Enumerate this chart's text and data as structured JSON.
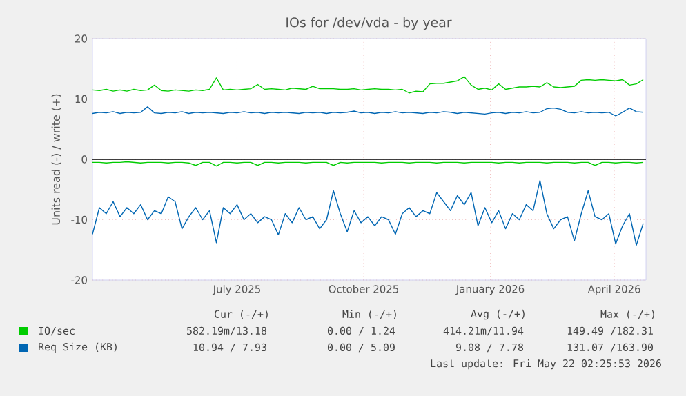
{
  "chart_data": {
    "type": "line",
    "title": "IOs for /dev/vda - by year",
    "ylabel": "Units read (-) / write (+)",
    "x": [
      "2025-03-18",
      "2025-03-23",
      "2025-03-28",
      "2025-04-02",
      "2025-04-07",
      "2025-04-12",
      "2025-04-17",
      "2025-04-22",
      "2025-04-27",
      "2025-05-02",
      "2025-05-07",
      "2025-05-12",
      "2025-05-17",
      "2025-05-22",
      "2025-05-27",
      "2025-06-01",
      "2025-06-06",
      "2025-06-11",
      "2025-06-16",
      "2025-06-21",
      "2025-06-26",
      "2025-07-01",
      "2025-07-06",
      "2025-07-11",
      "2025-07-16",
      "2025-07-21",
      "2025-07-26",
      "2025-07-31",
      "2025-08-05",
      "2025-08-10",
      "2025-08-15",
      "2025-08-20",
      "2025-08-25",
      "2025-08-30",
      "2025-09-04",
      "2025-09-09",
      "2025-09-14",
      "2025-09-19",
      "2025-09-24",
      "2025-09-29",
      "2025-10-04",
      "2025-10-09",
      "2025-10-14",
      "2025-10-19",
      "2025-10-24",
      "2025-10-29",
      "2025-11-03",
      "2025-11-08",
      "2025-11-13",
      "2025-11-18",
      "2025-11-23",
      "2025-11-28",
      "2025-12-03",
      "2025-12-08",
      "2025-12-13",
      "2025-12-18",
      "2025-12-23",
      "2025-12-28",
      "2026-01-02",
      "2026-01-07",
      "2026-01-12",
      "2026-01-17",
      "2026-01-22",
      "2026-01-27",
      "2026-02-01",
      "2026-02-06",
      "2026-02-11",
      "2026-02-16",
      "2026-02-21",
      "2026-02-26",
      "2026-03-03",
      "2026-03-08",
      "2026-03-13",
      "2026-03-18",
      "2026-03-23",
      "2026-03-28",
      "2026-04-02",
      "2026-04-07",
      "2026-04-12",
      "2026-04-17",
      "2026-04-22"
    ],
    "series": [
      {
        "name": "IO/sec",
        "color": "#00cc00",
        "values": [
          11.5,
          11.4,
          11.6,
          11.3,
          11.5,
          11.3,
          11.6,
          11.4,
          11.5,
          12.3,
          11.4,
          11.3,
          11.5,
          11.4,
          11.3,
          11.5,
          11.4,
          11.6,
          13.5,
          11.5,
          11.6,
          11.5,
          11.6,
          11.7,
          12.4,
          11.6,
          11.7,
          11.6,
          11.5,
          11.8,
          11.7,
          11.6,
          12.1,
          11.7,
          11.7,
          11.7,
          11.6,
          11.6,
          11.7,
          11.5,
          11.6,
          11.7,
          11.6,
          11.6,
          11.5,
          11.6,
          11.0,
          11.3,
          11.2,
          12.5,
          12.6,
          12.6,
          12.8,
          13.0,
          13.7,
          12.3,
          11.6,
          11.8,
          11.5,
          12.5,
          11.6,
          11.8,
          12.0,
          12.0,
          12.1,
          12.0,
          12.7,
          12.0,
          11.9,
          12.0,
          12.1,
          13.1,
          13.2,
          13.1,
          13.2,
          13.1,
          13.0,
          13.2,
          12.3,
          12.5,
          13.2
        ]
      },
      {
        "color": "#00cc00",
        "values": [
          -0.5,
          -0.5,
          -0.6,
          -0.5,
          -0.5,
          -0.4,
          -0.5,
          -0.6,
          -0.5,
          -0.5,
          -0.5,
          -0.6,
          -0.5,
          -0.5,
          -0.6,
          -1.0,
          -0.5,
          -0.5,
          -1.1,
          -0.5,
          -0.5,
          -0.6,
          -0.5,
          -0.5,
          -1.0,
          -0.5,
          -0.5,
          -0.6,
          -0.5,
          -0.5,
          -0.5,
          -0.6,
          -0.5,
          -0.5,
          -0.5,
          -1.0,
          -0.5,
          -0.6,
          -0.5,
          -0.5,
          -0.5,
          -0.5,
          -0.6,
          -0.5,
          -0.5,
          -0.5,
          -0.6,
          -0.5,
          -0.5,
          -0.5,
          -0.6,
          -0.5,
          -0.5,
          -0.5,
          -0.6,
          -0.5,
          -0.5,
          -0.5,
          -0.5,
          -0.6,
          -0.5,
          -0.5,
          -0.6,
          -0.5,
          -0.5,
          -0.5,
          -0.6,
          -0.5,
          -0.5,
          -0.5,
          -0.6,
          -0.5,
          -0.5,
          -1.0,
          -0.5,
          -0.5,
          -0.6,
          -0.5,
          -0.5,
          -0.6,
          -0.5
        ]
      },
      {
        "name": "Req Size (KB)",
        "color": "#0066b3",
        "values": [
          7.6,
          7.8,
          7.7,
          7.9,
          7.6,
          7.8,
          7.7,
          7.8,
          8.7,
          7.7,
          7.6,
          7.8,
          7.7,
          7.9,
          7.6,
          7.8,
          7.7,
          7.8,
          7.7,
          7.6,
          7.8,
          7.7,
          7.9,
          7.7,
          7.8,
          7.6,
          7.8,
          7.7,
          7.8,
          7.7,
          7.6,
          7.8,
          7.7,
          7.8,
          7.6,
          7.8,
          7.7,
          7.8,
          8.0,
          7.7,
          7.8,
          7.6,
          7.8,
          7.7,
          7.9,
          7.7,
          7.8,
          7.7,
          7.6,
          7.8,
          7.7,
          7.9,
          7.8,
          7.6,
          7.8,
          7.7,
          7.6,
          7.5,
          7.7,
          7.8,
          7.6,
          7.8,
          7.7,
          7.9,
          7.7,
          7.8,
          8.4,
          8.5,
          8.3,
          7.8,
          7.7,
          7.9,
          7.7,
          7.8,
          7.7,
          7.8,
          7.2,
          7.8,
          8.5,
          7.9,
          7.8
        ]
      },
      {
        "color": "#0066b3",
        "values": [
          -12.4,
          -8,
          -9,
          -7,
          -9.5,
          -8,
          -9,
          -7.5,
          -10,
          -8.5,
          -9,
          -6.2,
          -7,
          -11.5,
          -9.5,
          -8,
          -10,
          -8.5,
          -13.8,
          -8,
          -9,
          -7.5,
          -10,
          -9,
          -10.5,
          -9.5,
          -10,
          -12.5,
          -9,
          -10.5,
          -8,
          -10,
          -9.5,
          -11.5,
          -10,
          -5.2,
          -9,
          -12,
          -8.5,
          -10.5,
          -9.5,
          -11,
          -9.5,
          -10,
          -12.4,
          -9,
          -8,
          -9.5,
          -8.5,
          -9,
          -5.5,
          -7,
          -8.5,
          -6,
          -7.5,
          -5.5,
          -11,
          -8,
          -10.5,
          -8.5,
          -11.5,
          -9,
          -10,
          -7.5,
          -8.5,
          -3.5,
          -9,
          -11.5,
          -10,
          -9.5,
          -13.5,
          -9,
          -5.2,
          -9.5,
          -10,
          -9,
          -14,
          -11,
          -9,
          -14.2,
          -10.6
        ]
      }
    ],
    "xlim": [
      "2025-03-18",
      "2026-04-24"
    ],
    "xticks": [
      {
        "value": "2025-07-01",
        "label": "July 2025"
      },
      {
        "value": "2025-10-01",
        "label": "October 2025"
      },
      {
        "value": "2026-01-01",
        "label": "January 2026"
      },
      {
        "value": "2026-04-01",
        "label": "April 2026"
      }
    ],
    "ylim": [
      -20,
      20
    ],
    "yticks": [
      -20,
      -10,
      0,
      10,
      20
    ],
    "grid": true,
    "legend": "bottom",
    "ref_lines": [
      {
        "axis": "y",
        "value": 0,
        "color": "#000000"
      }
    ],
    "annotations": [
      "Cur (-/+)",
      "Min (-/+)",
      "Avg (-/+)",
      "Max (-/+)",
      "582.19m/13.18",
      "0.00 / 1.24",
      "414.21m/11.94",
      "149.49 /182.31",
      "10.94 / 7.93",
      "0.00 / 5.09",
      "9.08 / 7.78",
      "131.07 /163.90",
      "Last update: Fri May 22 02:25:53 2026"
    ]
  }
}
